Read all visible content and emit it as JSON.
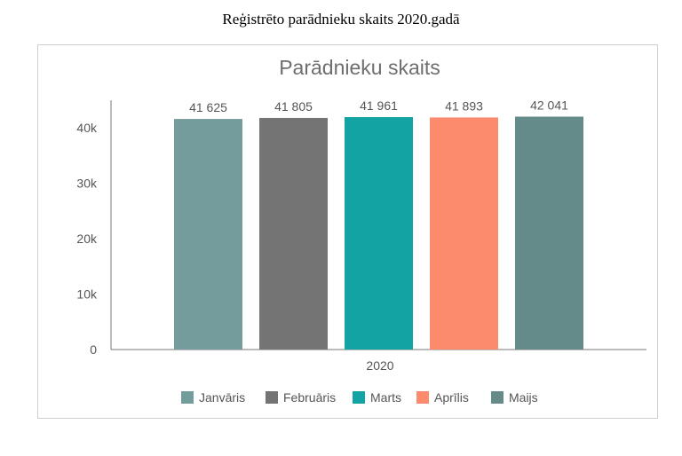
{
  "page": {
    "caption": "Reģistrēto parādnieku skaits 2020.gadā"
  },
  "chart_data": {
    "type": "bar",
    "title": "Parādnieku skaits",
    "categories": [
      "2020"
    ],
    "series": [
      {
        "name": "Janvāris",
        "values": [
          41625
        ],
        "label": "41 625",
        "color": "#749c9c"
      },
      {
        "name": "Februāris",
        "values": [
          41805
        ],
        "label": "41 805",
        "color": "#747474"
      },
      {
        "name": "Marts",
        "values": [
          41961
        ],
        "label": "41 961",
        "color": "#13a3a3"
      },
      {
        "name": "Aprīlis",
        "values": [
          41893
        ],
        "label": "41 893",
        "color": "#fc8b6d"
      },
      {
        "name": "Maijs",
        "values": [
          42041
        ],
        "label": "42 041",
        "color": "#648a8a"
      }
    ],
    "y_ticks": [
      {
        "value": 0,
        "label": "0"
      },
      {
        "value": 10000,
        "label": "10k"
      },
      {
        "value": 20000,
        "label": "20k"
      },
      {
        "value": 30000,
        "label": "30k"
      },
      {
        "value": 40000,
        "label": "40k"
      }
    ],
    "ylim": [
      0,
      45000
    ],
    "xlabel": "",
    "ylabel": "",
    "grid": false,
    "legend_position": "bottom"
  }
}
